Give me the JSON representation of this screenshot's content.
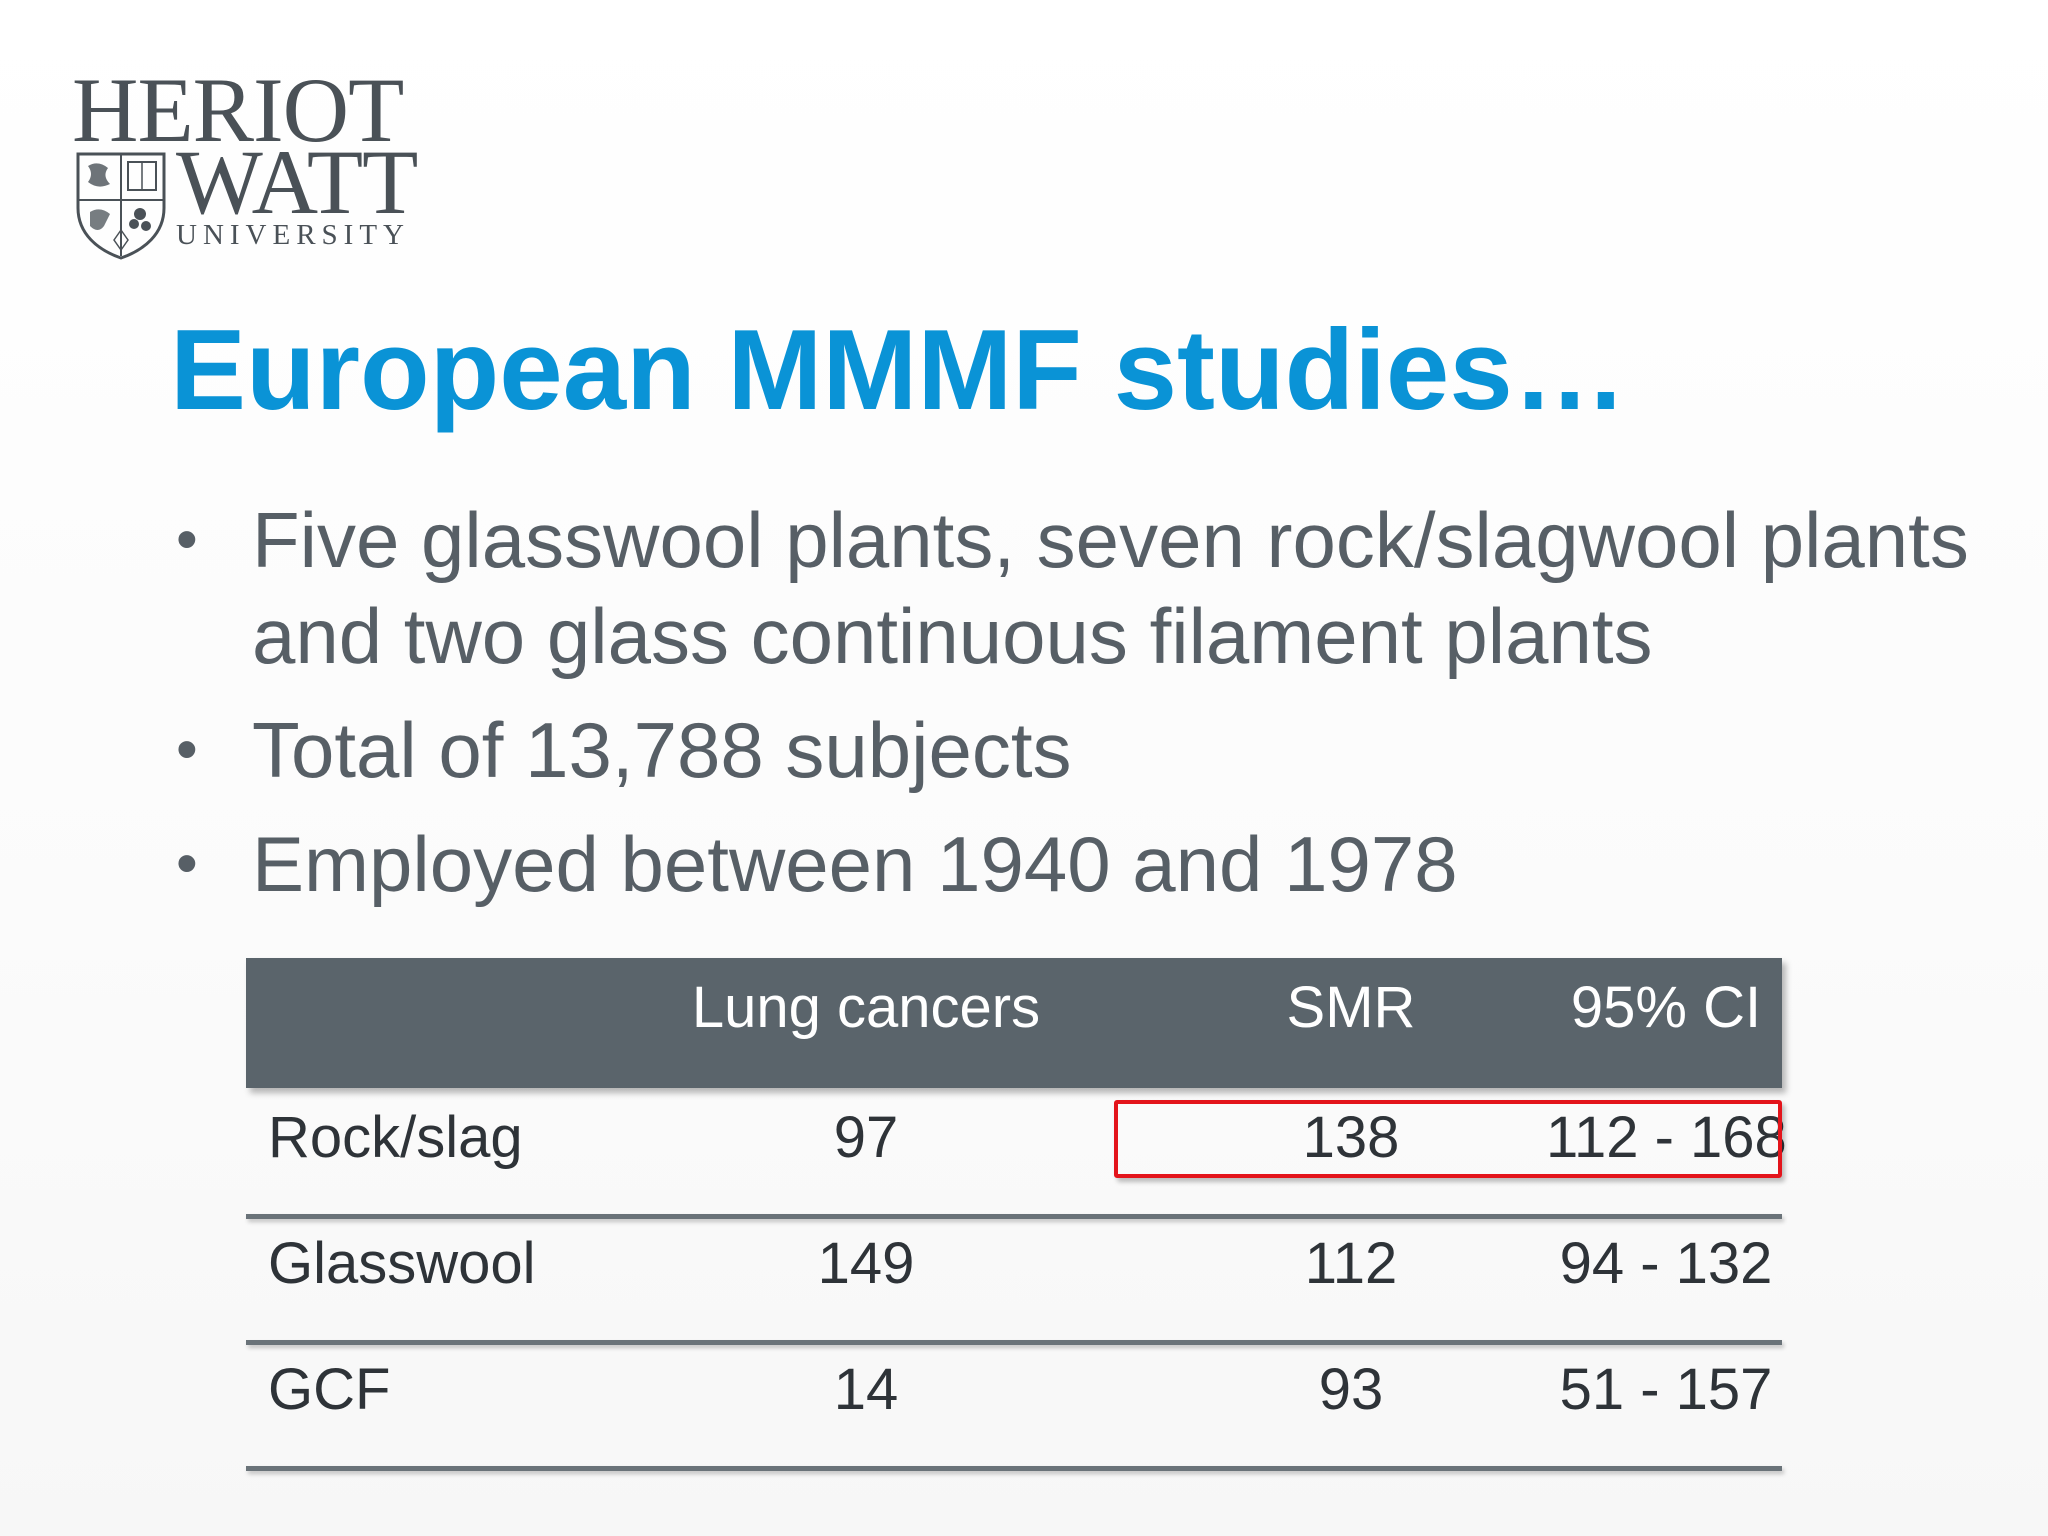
{
  "logo": {
    "line1": "HERIOT",
    "line2": "WATT",
    "line3": "UNIVERSITY"
  },
  "title": "European MMMF studies…",
  "bullets": [
    "Five glasswool plants, seven rock/slagwool plants and two glass continuous filament plants",
    "Total of 13,788 subjects",
    "Employed between 1940 and 1978"
  ],
  "bullet_glyph": "•",
  "table": {
    "headers": [
      "",
      "Lung cancers",
      "SMR",
      "95% CI"
    ],
    "rows": [
      [
        "Rock/slag",
        "97",
        "138",
        "112 - 168"
      ],
      [
        "Glasswool",
        "149",
        "112",
        "94 - 132"
      ],
      [
        "GCF",
        "14",
        "93",
        "51 - 157"
      ]
    ],
    "highlighted_row": 0,
    "highlighted_columns": [
      "SMR",
      "95% CI"
    ]
  },
  "colors": {
    "title": "#0a93d6",
    "body_text": "#575f66",
    "table_header_bg": "#5a646b",
    "highlight": "#e3141b",
    "logo": "#4a5157"
  },
  "icons": [
    "heriot-watt-crest-icon"
  ]
}
